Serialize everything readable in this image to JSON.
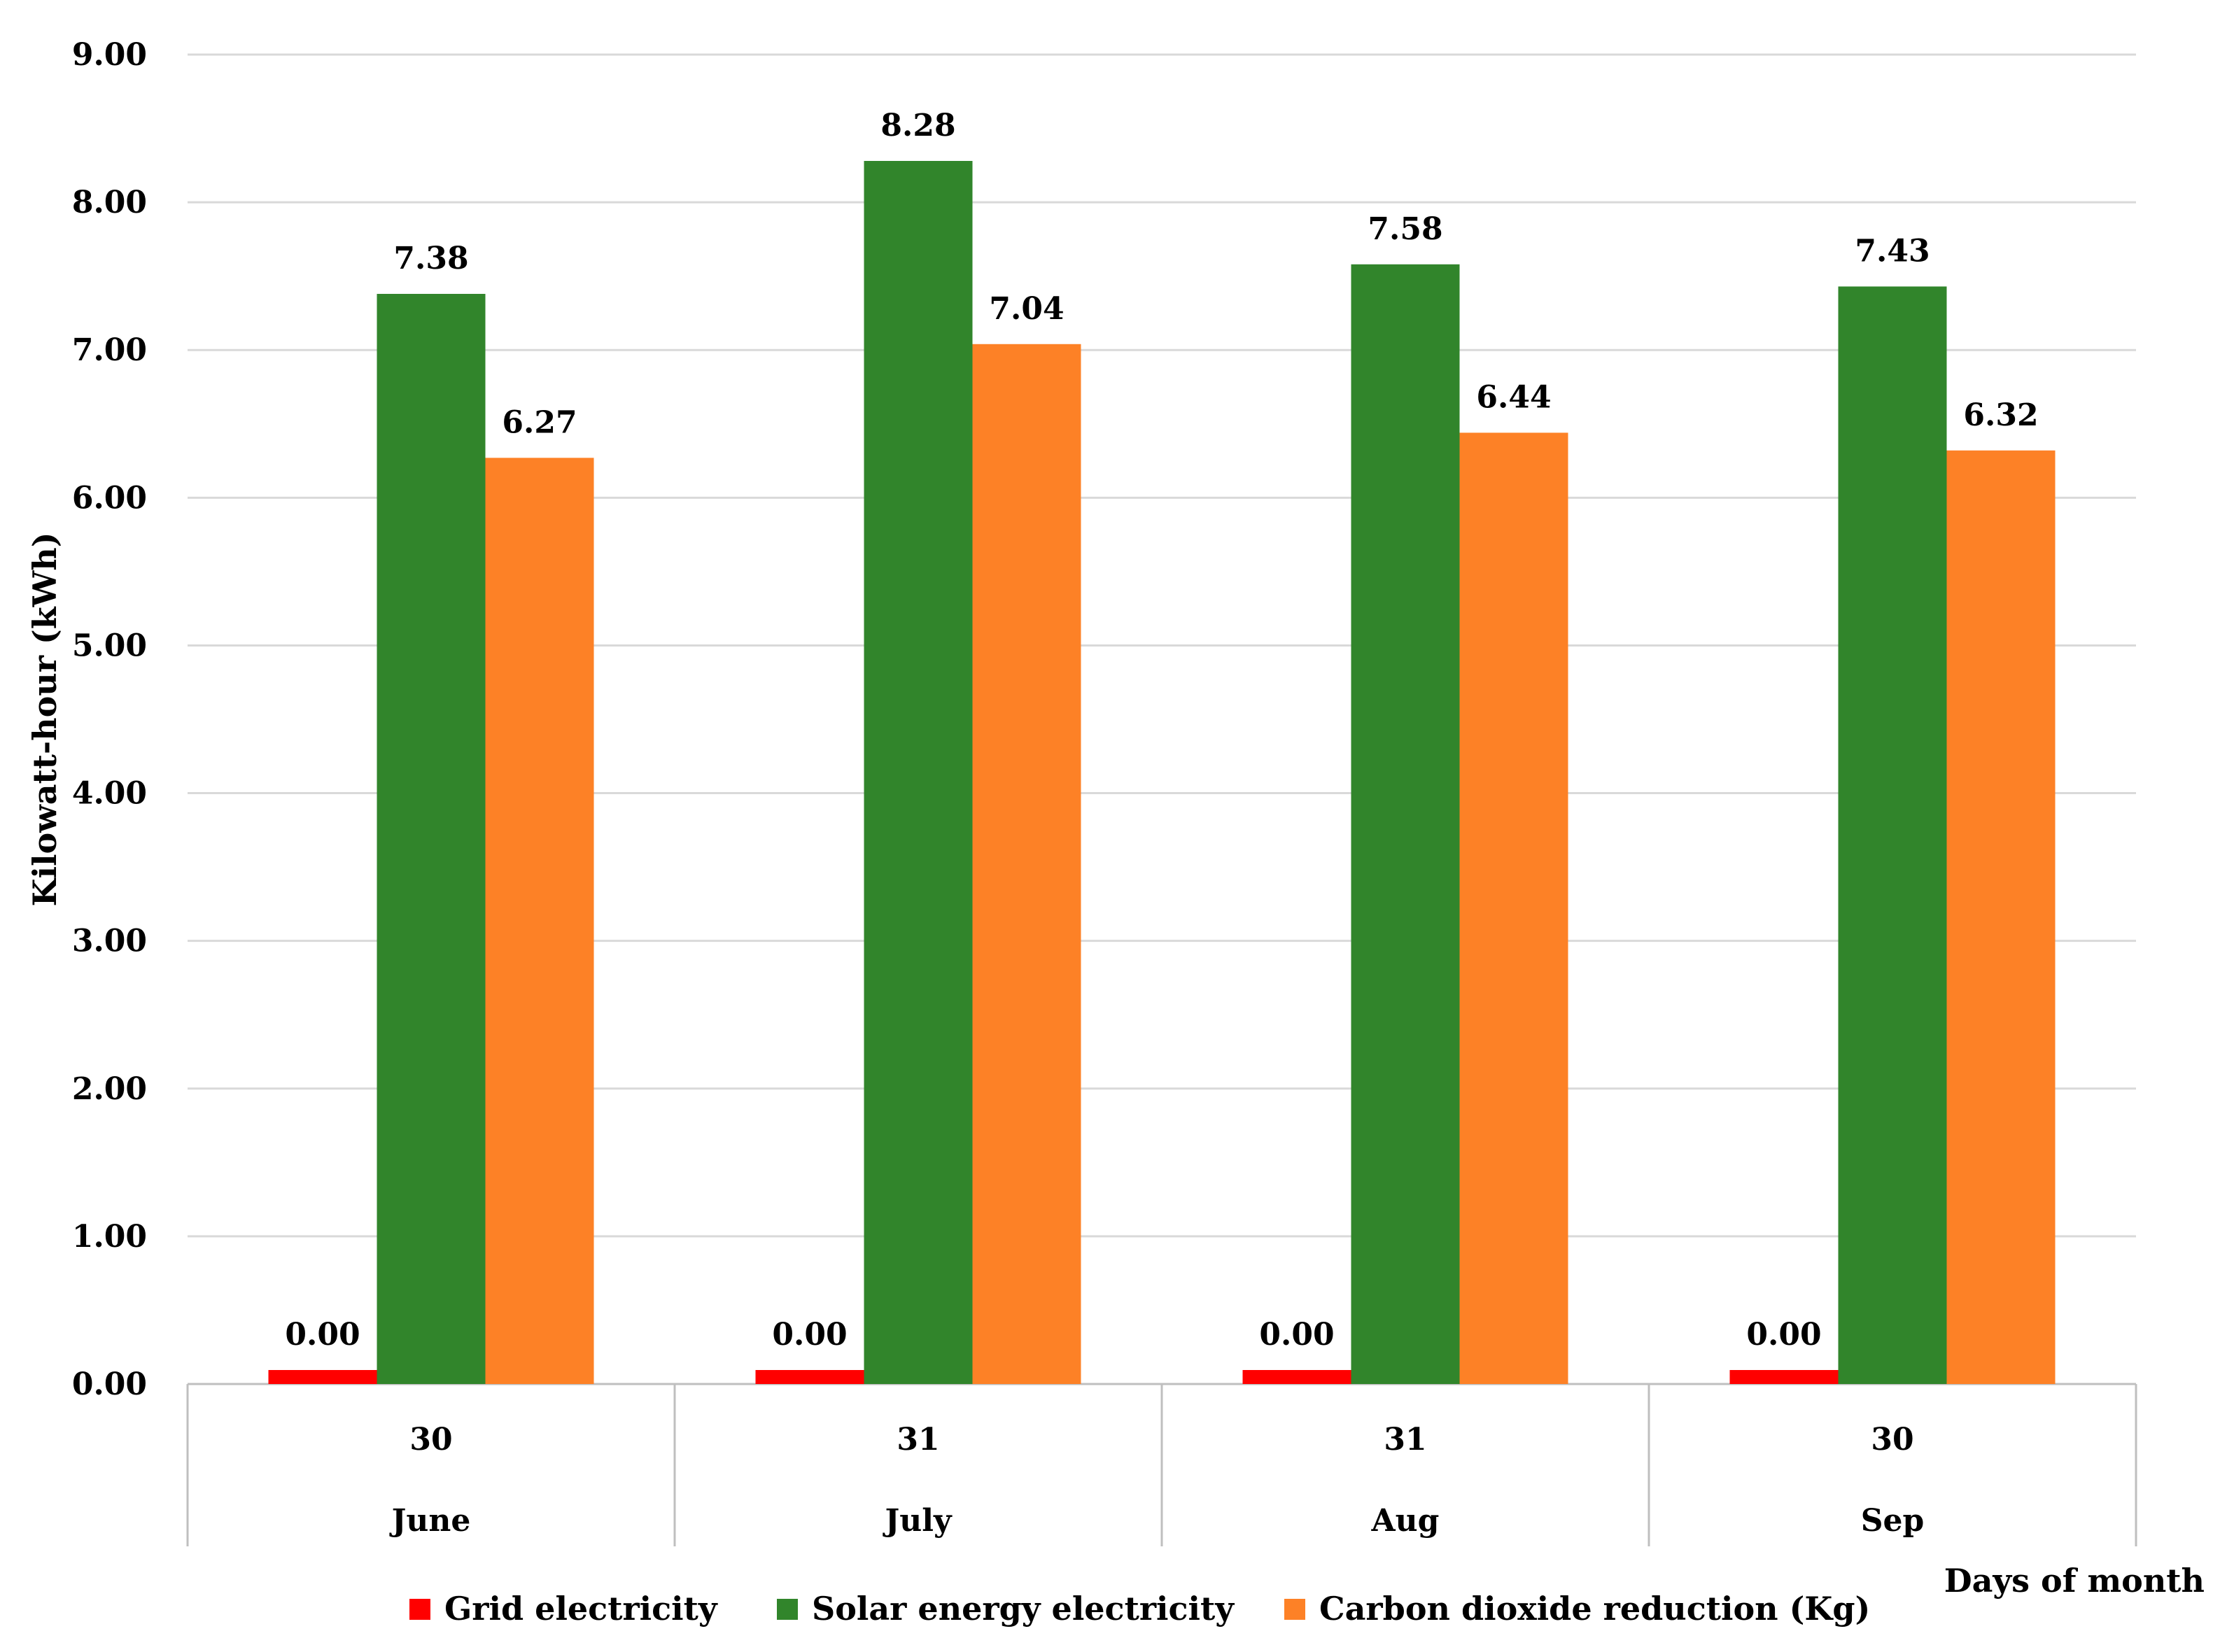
{
  "chart_data": {
    "type": "bar",
    "title": "",
    "ylabel": "Kilowatt-hour (kWh)",
    "xlabel": "Days of month",
    "ylim": [
      0,
      9
    ],
    "yticks": [
      "0.00",
      "1.00",
      "2.00",
      "3.00",
      "4.00",
      "5.00",
      "6.00",
      "7.00",
      "8.00",
      "9.00"
    ],
    "categories": [
      {
        "days": "30",
        "month": "June"
      },
      {
        "days": "31",
        "month": "July"
      },
      {
        "days": "31",
        "month": "Aug"
      },
      {
        "days": "30",
        "month": "Sep"
      }
    ],
    "series": [
      {
        "name": "Grid electricity",
        "color": "#ff0000",
        "values": [
          0.0,
          0.0,
          0.0,
          0.0
        ],
        "labels": [
          "0.00",
          "0.00",
          "0.00",
          "0.00"
        ]
      },
      {
        "name": "Solar energy electricity",
        "color": "#31852b",
        "values": [
          7.38,
          8.28,
          7.58,
          7.43
        ],
        "labels": [
          "7.38",
          "8.28",
          "7.58",
          "7.43"
        ]
      },
      {
        "name": "Carbon dioxide reduction (Kg)",
        "color": "#fd8126",
        "values": [
          6.27,
          7.04,
          6.44,
          6.32
        ],
        "labels": [
          "6.27",
          "7.04",
          "6.44",
          "6.32"
        ]
      }
    ],
    "grid": true,
    "legend": "bottom"
  }
}
